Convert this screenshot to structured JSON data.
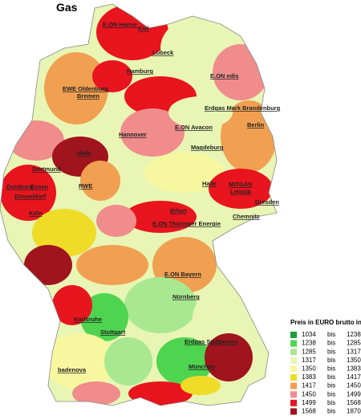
{
  "title": "Gas",
  "legend": {
    "title": "Preis in EURO brutto inkl. Mw",
    "rows": [
      {
        "color": "#1f9e3c",
        "from": 1034,
        "sep": "bis",
        "to": 1238
      },
      {
        "color": "#4fd44f",
        "from": 1238,
        "sep": "bis",
        "to": 1285
      },
      {
        "color": "#a8e890",
        "from": 1285,
        "sep": "bis",
        "to": 1317
      },
      {
        "color": "#e8f5b4",
        "from": 1317,
        "sep": "bis",
        "to": 1350
      },
      {
        "color": "#f7f7a0",
        "from": 1350,
        "sep": "bis",
        "to": 1383
      },
      {
        "color": "#f0dc28",
        "from": 1383,
        "sep": "bis",
        "to": 1417
      },
      {
        "color": "#f0a050",
        "from": 1417,
        "sep": "bis",
        "to": 1450
      },
      {
        "color": "#f08c8c",
        "from": 1450,
        "sep": "bis",
        "to": 1499
      },
      {
        "color": "#e8141e",
        "from": 1499,
        "sep": "bis",
        "to": 1568
      },
      {
        "color": "#a0141e",
        "from": 1568,
        "sep": "bis",
        "to": 1870
      }
    ]
  },
  "labels": [
    "E.ON Hanse",
    "Kiel",
    "Lübeck",
    "Hamburg",
    "EWE Oldenburg",
    "Bremen",
    "E.ON edis",
    "Erdgas Mark Brandenburg",
    "Berlin",
    "Hannover",
    "E.ON Avacon",
    "Magdeburg",
    "Halle",
    "Dortmund",
    "Duisburg",
    "Essen",
    "RWE",
    "Düsseldorf",
    "Köln",
    "Halle",
    "MITGAS",
    "Leipzig",
    "Dresden",
    "Erfurt",
    "Chemnitz",
    "E.ON Thüringer Energie",
    "E.ON Bayern",
    "Nürnberg",
    "Karlsruhe",
    "Stuttgart",
    "Erdgas Südbayern",
    "München",
    "badenova"
  ]
}
